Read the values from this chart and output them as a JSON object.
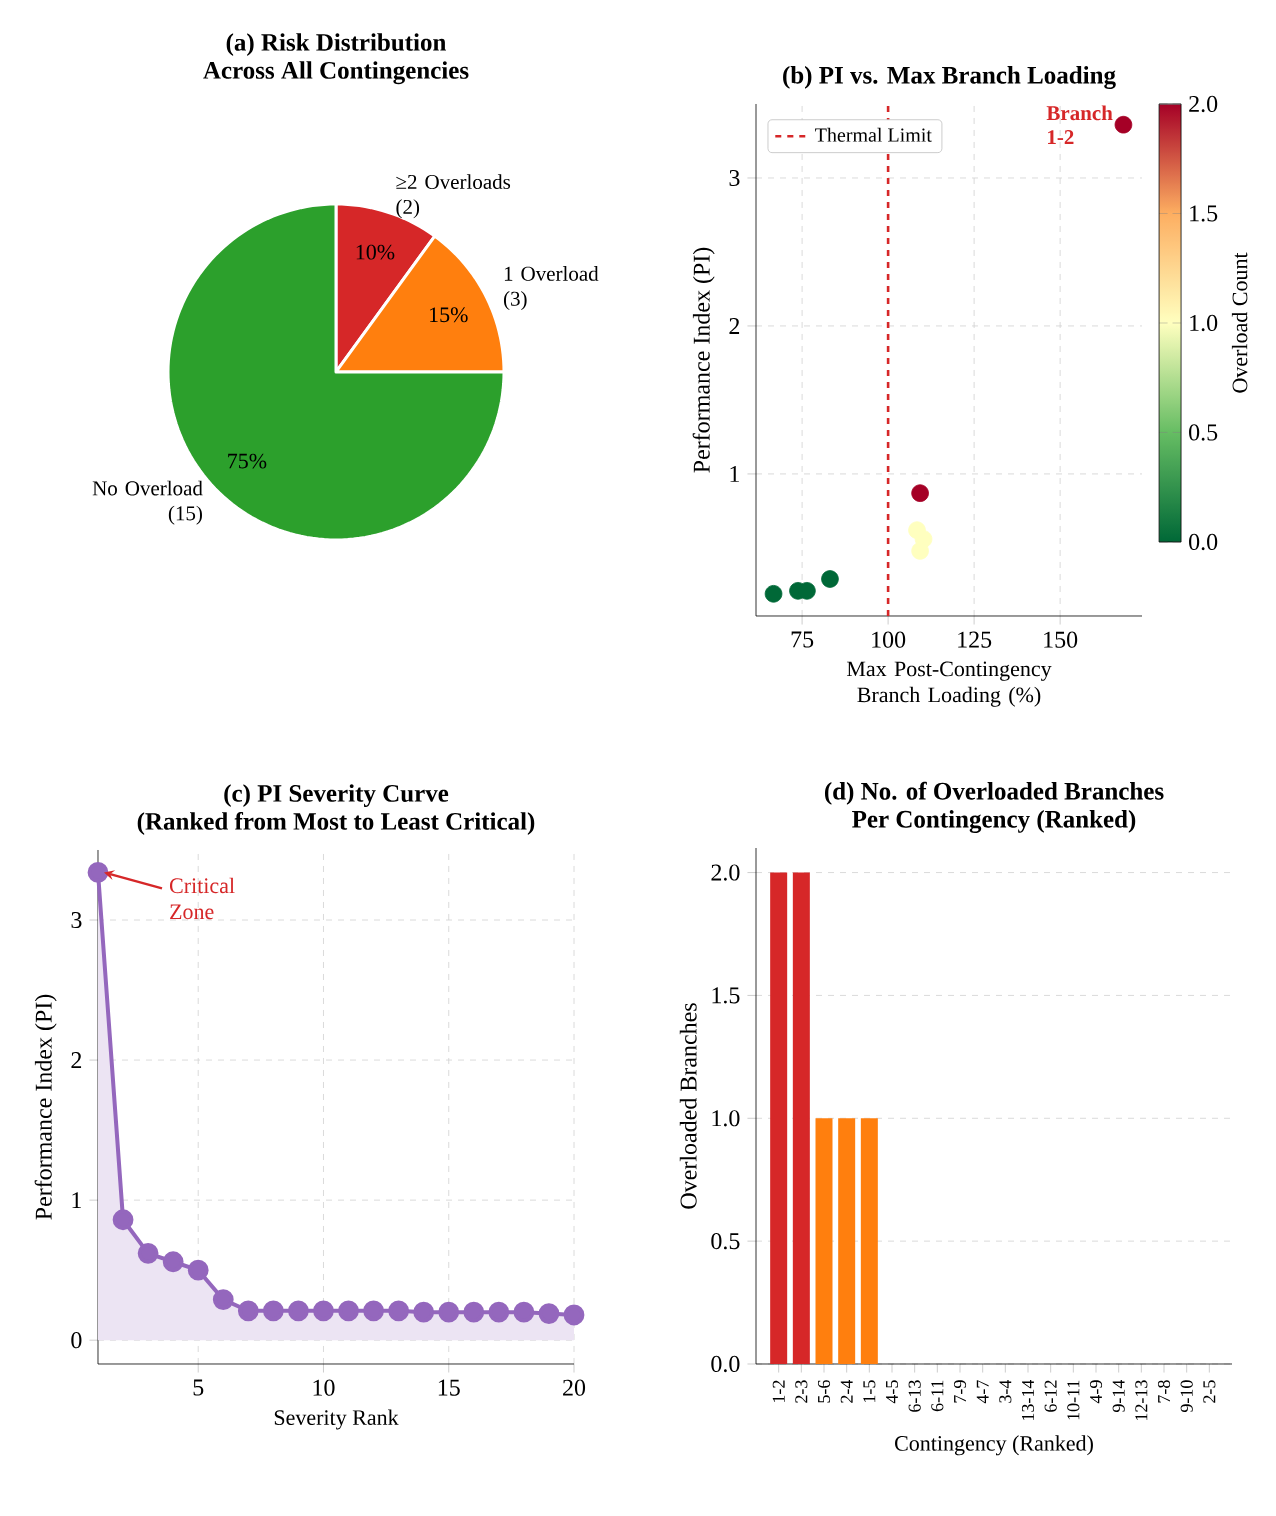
{
  "chart_data": [
    {
      "type": "pie",
      "title": "(a)  Risk Distribution",
      "subtitle": "Across All Contingencies",
      "categories": [
        "≥2 Overloads (2)",
        "1 Overload (3)",
        "No Overload (15)"
      ],
      "values": [
        10,
        15,
        75
      ],
      "colors": [
        "#d62728",
        "#ff7f0e",
        "#2ca02c"
      ],
      "value_labels": [
        "10%",
        "15%",
        "75%"
      ]
    },
    {
      "type": "scatter",
      "title": "(b)  PI vs. Max Branch Loading",
      "xlabel": "Max Post-Contingency Branch Loading (%)",
      "ylabel": "Performance Index (PI)",
      "clabel": "Overload Count",
      "x": [
        66.7,
        73.8,
        76.4,
        83.1,
        108.4,
        110.3,
        109.3,
        109.3,
        168.4
      ],
      "values": [
        0.19,
        0.21,
        0.21,
        0.29,
        0.62,
        0.56,
        0.48,
        0.87,
        3.36
      ],
      "cvalues": [
        0,
        0,
        0,
        0,
        1,
        1,
        1,
        2,
        2
      ],
      "clim": [
        0,
        2
      ],
      "cticks": [
        {
          "value": 0,
          "label": "0.0"
        },
        {
          "value": 0.5,
          "label": "0.5"
        },
        {
          "value": 1,
          "label": "1.0"
        },
        {
          "value": 1.5,
          "label": "1.5"
        },
        {
          "value": 2,
          "label": "2.0"
        }
      ],
      "xlim": [
        61.6,
        173.8
      ],
      "ylim": [
        0.04,
        3.5
      ],
      "xticks": [
        75,
        100,
        125,
        150
      ],
      "yticks": [
        1,
        2,
        3
      ],
      "ref_lines": [
        {
          "axis": "x",
          "value": 100,
          "label": "Thermal Limit",
          "color": "#d62728",
          "line_style": "dashed"
        }
      ],
      "annotations": [
        {
          "text": "Branch 1-2",
          "x": 168.4,
          "y": 3.36
        }
      ],
      "legend": "top left",
      "grid": true,
      "marker": "circle"
    },
    {
      "type": "area",
      "title": "(c)  PI Severity Curve",
      "subtitle": "(Ranked from Most to Least Critical)",
      "xlabel": "Severity Rank",
      "ylabel": "Performance Index (PI)",
      "x": [
        1,
        2,
        3,
        4,
        5,
        6,
        7,
        8,
        9,
        10,
        11,
        12,
        13,
        14,
        15,
        16,
        17,
        18,
        19,
        20
      ],
      "values": [
        3.34,
        0.86,
        0.62,
        0.56,
        0.5,
        0.29,
        0.21,
        0.21,
        0.21,
        0.21,
        0.21,
        0.21,
        0.21,
        0.2,
        0.2,
        0.2,
        0.2,
        0.2,
        0.19,
        0.18
      ],
      "color": "#9467bd",
      "xlim": [
        1,
        20
      ],
      "ylim": [
        -0.17,
        3.5
      ],
      "xticks": [
        5,
        10,
        15,
        20
      ],
      "yticks": [
        0,
        1,
        2,
        3
      ],
      "annotations": [
        {
          "text": "Critical Zone",
          "x": 1,
          "y": 3.34
        }
      ],
      "grid": true,
      "marker": "circle",
      "line_style": "solid"
    },
    {
      "type": "bar",
      "title": "(d)  No. of Overloaded Branches",
      "subtitle": "Per Contingency (Ranked)",
      "xlabel": "Contingency (Ranked)",
      "ylabel": "Overloaded Branches",
      "categories": [
        "1-2",
        "2-3",
        "5-6",
        "2-4",
        "1-5",
        "4-5",
        "6-13",
        "6-11",
        "7-9",
        "4-7",
        "3-4",
        "13-14",
        "6-12",
        "10-11",
        "4-9",
        "9-14",
        "12-13",
        "7-8",
        "9-10",
        "2-5"
      ],
      "values": [
        2,
        2,
        1,
        1,
        1,
        0,
        0,
        0,
        0,
        0,
        0,
        0,
        0,
        0,
        0,
        0,
        0,
        0,
        0,
        0
      ],
      "colors": [
        "#d62728",
        "#d62728",
        "#ff7f0e",
        "#ff7f0e",
        "#ff7f0e",
        "#2ca02c",
        "#2ca02c",
        "#2ca02c",
        "#2ca02c",
        "#2ca02c",
        "#2ca02c",
        "#2ca02c",
        "#2ca02c",
        "#2ca02c",
        "#2ca02c",
        "#2ca02c",
        "#2ca02c",
        "#2ca02c",
        "#2ca02c",
        "#2ca02c"
      ],
      "ylim": [
        0,
        2.1
      ],
      "yticks": [
        {
          "value": 0,
          "label": "0.0"
        },
        {
          "value": 0.5,
          "label": "0.5"
        },
        {
          "value": 1,
          "label": "1.0"
        },
        {
          "value": 1.5,
          "label": "1.5"
        },
        {
          "value": 2,
          "label": "2.0"
        }
      ],
      "grid": "y"
    }
  ]
}
